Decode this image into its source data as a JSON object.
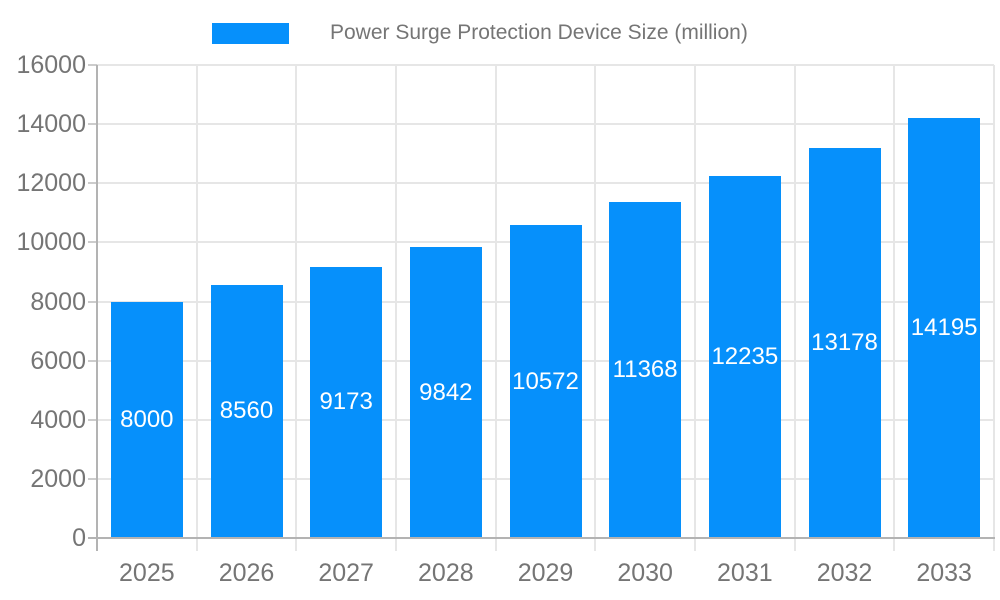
{
  "chart": {
    "legend": {
      "label": "Power Surge Protection Device Size (million)"
    }
  },
  "chart_data": {
    "type": "bar",
    "title": "",
    "categories": [
      "2025",
      "2026",
      "2027",
      "2028",
      "2029",
      "2030",
      "2031",
      "2032",
      "2033"
    ],
    "series": [
      {
        "name": "Power Surge Protection Device Size (million)",
        "values": [
          8000,
          8560,
          9173,
          9842,
          10572,
          11368,
          12235,
          13178,
          14195
        ]
      }
    ],
    "value_labels": [
      "8000",
      "8560",
      "9173",
      "9842",
      "10572",
      "11368",
      "12235",
      "13178",
      "14195"
    ],
    "xlabel": "",
    "ylabel": "",
    "ylim": [
      0,
      16000
    ],
    "yticks": [
      0,
      2000,
      4000,
      6000,
      8000,
      10000,
      12000,
      14000,
      16000
    ],
    "grid": true,
    "legend_position": "top",
    "colors": {
      "bar": "#0690FB",
      "bar_value_text": "#FFFFFF",
      "axis_text": "#757575",
      "legend_text": "#757575",
      "gridline": "#E6E6E6",
      "axis_line": "#B3B3B3",
      "tick": "#CCCCCC",
      "background": "#FFFFFF"
    }
  }
}
